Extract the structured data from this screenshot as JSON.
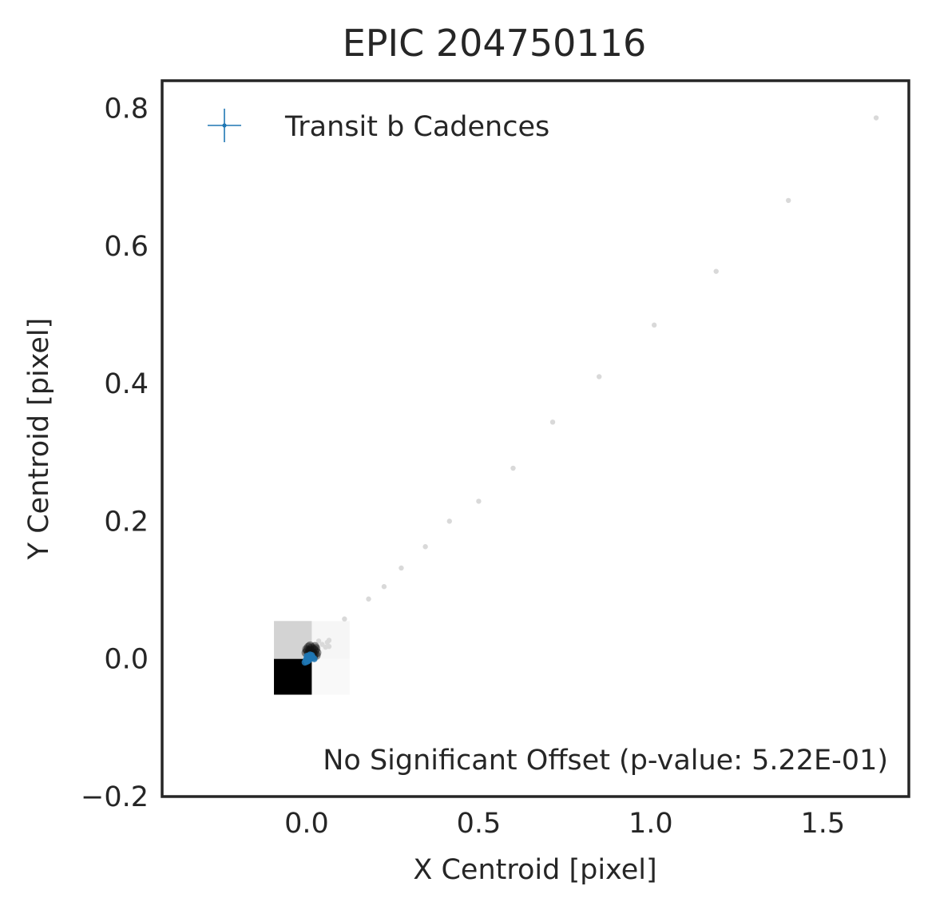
{
  "chart_data": {
    "type": "scatter",
    "title": "EPIC 204750116",
    "xlabel": "X Centroid [pixel]",
    "ylabel": "Y Centroid [pixel]",
    "xlim": [
      -0.42,
      1.75
    ],
    "ylim": [
      -0.2,
      0.84
    ],
    "xticks": [
      0.0,
      0.5,
      1.0,
      1.5
    ],
    "yticks": [
      -0.2,
      0.0,
      0.2,
      0.4,
      0.6,
      0.8
    ],
    "xtick_labels": [
      "0.0",
      "0.5",
      "1.0",
      "1.5"
    ],
    "ytick_labels": [
      "−0.2",
      "0.0",
      "0.2",
      "0.4",
      "0.6",
      "0.8"
    ],
    "grid": false,
    "legend": {
      "placement": "top-left",
      "entries": [
        {
          "label": "Transit b Cadences",
          "color": "#1f77b4",
          "marker": "+"
        }
      ]
    },
    "annotation": "No Significant Offset (p-value: 5.22E-01)",
    "background_image": {
      "description": "pixel-level grayscale cutout",
      "cells": [
        {
          "x0": -0.095,
          "x1": 0.015,
          "y0": 0.0,
          "y1": 0.055,
          "color": "#d3d3d3"
        },
        {
          "x0": 0.015,
          "x1": 0.125,
          "y0": 0.0,
          "y1": 0.055,
          "color": "#f6f6f6"
        },
        {
          "x0": -0.095,
          "x1": 0.015,
          "y0": -0.052,
          "y1": 0.0,
          "color": "#000000"
        },
        {
          "x0": 0.015,
          "x1": 0.125,
          "y0": -0.052,
          "y1": 0.0,
          "color": "#f9f9f9"
        }
      ]
    },
    "series": [
      {
        "style": "all cadences",
        "color": "#d9d9d9",
        "points": [
          {
            "x": 1.655,
            "y": 0.786
          },
          {
            "x": 1.4,
            "y": 0.666
          },
          {
            "x": 1.19,
            "y": 0.563
          },
          {
            "x": 1.01,
            "y": 0.485
          },
          {
            "x": 0.85,
            "y": 0.41
          },
          {
            "x": 0.715,
            "y": 0.344
          },
          {
            "x": 0.6,
            "y": 0.277
          },
          {
            "x": 0.5,
            "y": 0.229
          },
          {
            "x": 0.415,
            "y": 0.2
          },
          {
            "x": 0.345,
            "y": 0.163
          },
          {
            "x": 0.275,
            "y": 0.132
          },
          {
            "x": 0.225,
            "y": 0.105
          },
          {
            "x": 0.18,
            "y": 0.087
          },
          {
            "x": 0.11,
            "y": 0.058
          },
          {
            "x": 0.065,
            "y": 0.027
          },
          {
            "x": 0.065,
            "y": 0.018
          },
          {
            "x": 0.035,
            "y": 0.026
          },
          {
            "x": 0.045,
            "y": 0.021
          },
          {
            "x": 0.055,
            "y": 0.017
          },
          {
            "x": 0.06,
            "y": 0.024
          }
        ]
      },
      {
        "style": "core cadences",
        "color": "#111111",
        "points": [
          {
            "x": 0.0,
            "y": 0.014
          },
          {
            "x": 0.005,
            "y": 0.017
          },
          {
            "x": 0.01,
            "y": 0.019
          },
          {
            "x": 0.015,
            "y": 0.016
          },
          {
            "x": 0.02,
            "y": 0.014
          },
          {
            "x": 0.025,
            "y": 0.012
          },
          {
            "x": 0.03,
            "y": 0.009
          },
          {
            "x": 0.028,
            "y": 0.005
          },
          {
            "x": 0.02,
            "y": 0.003
          },
          {
            "x": 0.012,
            "y": 0.005
          },
          {
            "x": 0.005,
            "y": 0.008
          },
          {
            "x": -0.002,
            "y": 0.009
          },
          {
            "x": 0.008,
            "y": 0.011
          },
          {
            "x": 0.018,
            "y": 0.009
          },
          {
            "x": 0.024,
            "y": 0.018
          },
          {
            "x": 0.01,
            "y": 0.013
          },
          {
            "x": 0.016,
            "y": 0.007
          },
          {
            "x": 0.022,
            "y": 0.006
          },
          {
            "x": 0.002,
            "y": 0.012
          },
          {
            "x": 0.027,
            "y": 0.015
          }
        ]
      },
      {
        "name": "Transit b Cadences",
        "color": "#1f77b4",
        "points": [
          {
            "x": -0.005,
            "y": -0.005
          },
          {
            "x": -0.002,
            "y": -0.002
          },
          {
            "x": 0.0,
            "y": 0.0
          },
          {
            "x": 0.003,
            "y": 0.002
          },
          {
            "x": 0.006,
            "y": 0.004
          },
          {
            "x": 0.01,
            "y": 0.006
          },
          {
            "x": 0.012,
            "y": 0.003
          },
          {
            "x": 0.008,
            "y": -0.001
          },
          {
            "x": 0.004,
            "y": -0.003
          },
          {
            "x": 0.0,
            "y": -0.004
          },
          {
            "x": 0.015,
            "y": 0.005
          },
          {
            "x": 0.018,
            "y": 0.002
          },
          {
            "x": 0.022,
            "y": 0.0
          },
          {
            "x": 0.007,
            "y": 0.001
          },
          {
            "x": 0.001,
            "y": 0.004
          }
        ]
      }
    ]
  }
}
